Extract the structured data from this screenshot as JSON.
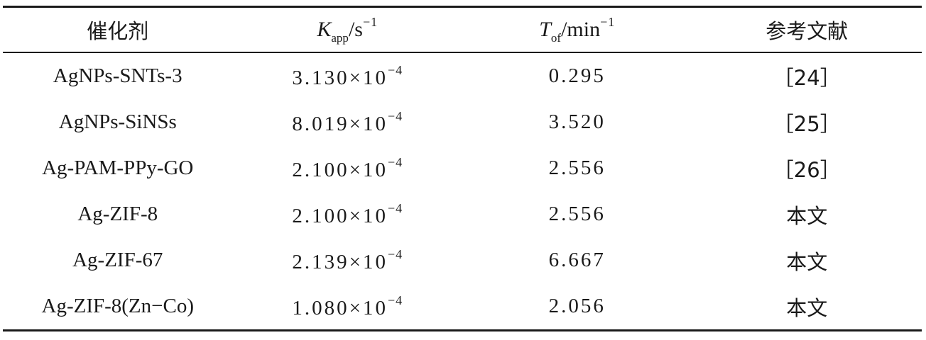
{
  "table": {
    "headers": {
      "catalyst": "催化剂",
      "k_symbol": "K",
      "k_sub": "app",
      "k_unit": "/s",
      "k_exp": "−1",
      "t_symbol": "T",
      "t_sub": "of",
      "t_unit": "/min",
      "t_exp": "−1",
      "reference": "参考文献"
    },
    "rows": [
      {
        "catalyst": "AgNPs-SNTs-3",
        "k_mantissa": "3.130",
        "k_times": "×10",
        "k_exp": "−4",
        "tof": "0.295",
        "ref": "［24］"
      },
      {
        "catalyst": "AgNPs-SiNSs",
        "k_mantissa": "8.019",
        "k_times": "×10",
        "k_exp": "−4",
        "tof": "3.520",
        "ref": "［25］"
      },
      {
        "catalyst": "Ag-PAM-PPy-GO",
        "k_mantissa": "2.100",
        "k_times": "×10",
        "k_exp": "−4",
        "tof": "2.556",
        "ref": "［26］"
      },
      {
        "catalyst": "Ag-ZIF-8",
        "k_mantissa": "2.100",
        "k_times": "×10",
        "k_exp": "−4",
        "tof": "2.556",
        "ref": "本文"
      },
      {
        "catalyst": "Ag-ZIF-67",
        "k_mantissa": "2.139",
        "k_times": "×10",
        "k_exp": "−4",
        "tof": "6.667",
        "ref": "本文"
      },
      {
        "catalyst": "Ag-ZIF-8(Zn−Co)",
        "k_mantissa": "1.080",
        "k_times": "×10",
        "k_exp": "−4",
        "tof": "2.056",
        "ref": "本文"
      }
    ]
  }
}
